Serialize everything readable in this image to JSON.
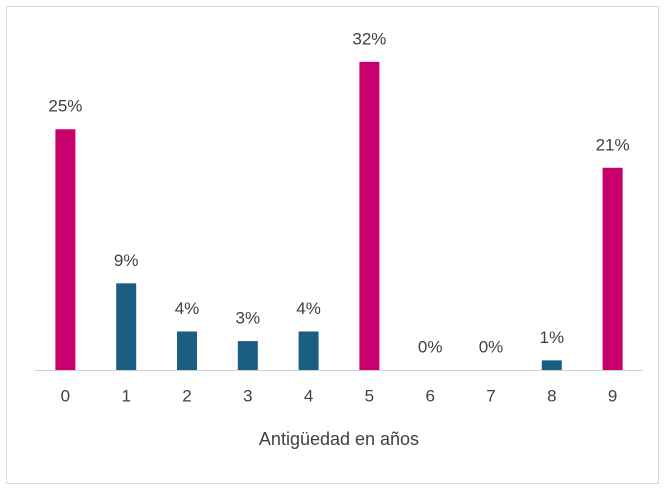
{
  "chart_data": {
    "type": "bar",
    "x_label": "Antigüedad en años",
    "categories": [
      "0",
      "1",
      "2",
      "3",
      "4",
      "5",
      "6",
      "7",
      "8",
      "9"
    ],
    "values": [
      25,
      9,
      4,
      3,
      4,
      32,
      0,
      0,
      1,
      21
    ],
    "value_labels": [
      "25%",
      "9%",
      "4%",
      "3%",
      "4%",
      "32%",
      "0%",
      "0%",
      "1%",
      "21%"
    ],
    "colors": [
      "#c8006e",
      "#1b5e82",
      "#1b5e82",
      "#1b5e82",
      "#1b5e82",
      "#c8006e",
      "#1b5e82",
      "#1b5e82",
      "#1b5e82",
      "#c8006e"
    ]
  }
}
